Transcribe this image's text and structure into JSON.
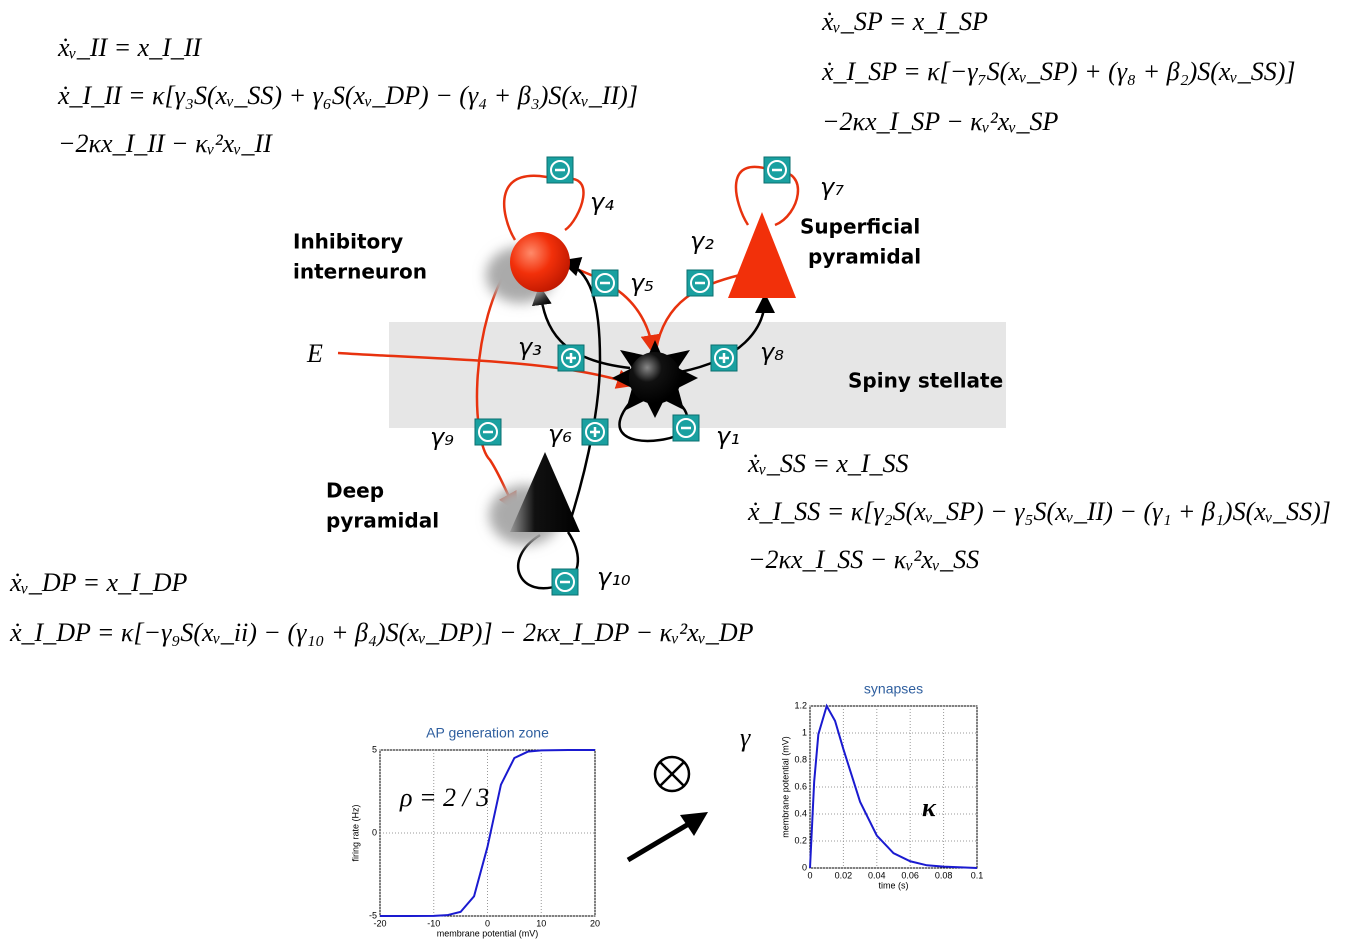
{
  "equations": {
    "inhibitory": [
      "ẋᵥ_II = x_I_II",
      "ẋ_I_II = κ[γ₃S(xᵥ_SS) + γ₆S(xᵥ_DP) − (γ₄ + β₃)S(xᵥ_II)]",
      "−2κx_I_II − κᵥ²xᵥ_II"
    ],
    "superficial": [
      "ẋᵥ_SP = x_I_SP",
      "ẋ_I_SP = κ[−γ₇S(xᵥ_SP) + (γ₈ + β₂)S(xᵥ_SS)]",
      "−2κx_I_SP − κᵥ²xᵥ_SP"
    ],
    "stellate": [
      "ẋᵥ_SS = x_I_SS",
      "ẋ_I_SS = κ[γ₂S(xᵥ_SP) − γ₅S(xᵥ_II) − (γ₁ + β₁)S(xᵥ_SS)]",
      "−2κx_I_SS − κᵥ²xᵥ_SS"
    ],
    "deep": [
      "ẋᵥ_DP = x_I_DP",
      "ẋ_I_DP = κ[−γ₉S(xᵥ_ii) − (γ₁₀ + β₄)S(xᵥ_DP)] − 2κx_I_DP − κᵥ²xᵥ_DP"
    ]
  },
  "labels": {
    "inhibitory": [
      "Inhibitory",
      "interneuron"
    ],
    "superficial": [
      "Superficial",
      "pyramidal"
    ],
    "stellate": [
      "Spiny stellate"
    ],
    "deep": [
      "Deep",
      "pyramidal"
    ],
    "input": "E"
  },
  "gamma_labels": [
    "γ₁",
    "γ₂",
    "γ₃",
    "γ₄",
    "γ₅",
    "γ₆",
    "γ₇",
    "γ₈",
    "γ₉",
    "γ₁₀"
  ],
  "chart_data": [
    {
      "type": "line",
      "title": "AP generation zone",
      "xlabel": "membrane potential (mV)",
      "ylabel": "firing rate (Hz)",
      "annotations": [
        "ρ = 2 / 3"
      ],
      "x": [
        -20,
        -15,
        -10,
        -7.5,
        -5,
        -2.5,
        0,
        2.5,
        5,
        7.5,
        10,
        15,
        20
      ],
      "values": [
        -5,
        -5,
        -4.99,
        -4.95,
        -4.75,
        -3.81,
        -0.83,
        2.91,
        4.52,
        4.9,
        4.98,
        5,
        5
      ],
      "color": "#1a1ad0",
      "xlim": [
        -20,
        20
      ],
      "ylim": [
        -5,
        5
      ],
      "xticks": [
        -20,
        -10,
        0,
        10,
        20
      ],
      "yticks": [
        -5,
        0,
        5
      ],
      "grid": true
    },
    {
      "type": "line",
      "title": "synapses",
      "xlabel": "time (s)",
      "ylabel": "membrane potential (mV)",
      "annotations": [
        "γ",
        "κ"
      ],
      "x": [
        0,
        0.0025,
        0.005,
        0.01,
        0.015,
        0.02,
        0.03,
        0.04,
        0.05,
        0.06,
        0.07,
        0.08,
        0.1
      ],
      "values": [
        0,
        0.64,
        0.99,
        1.2,
        1.09,
        0.88,
        0.49,
        0.24,
        0.11,
        0.05,
        0.02,
        0.01,
        0
      ],
      "color": "#1a1ad0",
      "xlim": [
        0,
        0.1
      ],
      "ylim": [
        0,
        1.2
      ],
      "xticks": [
        0,
        0.02,
        0.04,
        0.06,
        0.08,
        0.1
      ],
      "yticks": [
        0,
        0.2,
        0.4,
        0.6,
        0.8,
        1,
        1.2
      ],
      "grid": true
    }
  ]
}
